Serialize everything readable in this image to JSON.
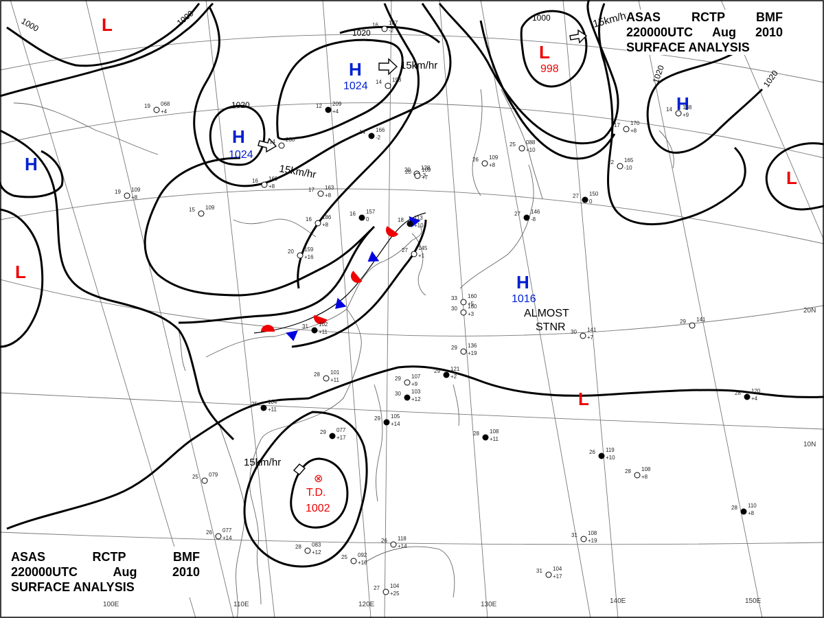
{
  "header": {
    "agency": "ASAS",
    "center": "RCTP",
    "product_code": "BMF",
    "time": "220000UTC",
    "month": "Aug",
    "year": "2010",
    "title": "SURFACE ANALYSIS"
  },
  "pressure_systems": [
    {
      "type": "L",
      "label": "L"
    },
    {
      "type": "L",
      "label": "L",
      "pressure": "998"
    },
    {
      "type": "L",
      "label": "L"
    },
    {
      "type": "L",
      "label": "L"
    },
    {
      "type": "L",
      "label": "L"
    },
    {
      "type": "H",
      "label": "H"
    },
    {
      "type": "H",
      "label": "H",
      "pressure": "1024"
    },
    {
      "type": "H",
      "label": "H",
      "pressure": "1024"
    },
    {
      "type": "H",
      "label": "H"
    },
    {
      "type": "H",
      "label": "H",
      "pressure": "1016"
    }
  ],
  "tropical_depression": {
    "symbol": "⊗",
    "label": "T.D.",
    "pressure": "1002"
  },
  "isobar_labels": [
    "1000",
    "1000",
    "1000",
    "1020",
    "1020",
    "1020",
    "1020"
  ],
  "motion_labels": [
    "15km/hr",
    "15km/hr",
    "15km/hr",
    "15km/hr"
  ],
  "annotations": {
    "almost": "ALMOST",
    "stnr": "STNR"
  },
  "lat_labels": [
    "20N",
    "10N"
  ],
  "lon_labels": [
    "100E",
    "110E",
    "120E",
    "130E",
    "140E",
    "150E"
  ],
  "stations": [
    {
      "t": "12",
      "p": "209",
      "d": "+4"
    },
    {
      "t": "14",
      "p": "166",
      "d": "-2"
    },
    {
      "t": "16",
      "p": "187",
      "d": "-2"
    },
    {
      "t": "20",
      "p": "128",
      "d": "-3"
    },
    {
      "t": "16",
      "p": "157",
      "d": "0"
    },
    {
      "t": "18",
      "p": "113",
      "d": "+10"
    },
    {
      "t": "16",
      "p": "186",
      "d": "+8"
    },
    {
      "t": "20",
      "p": "159",
      "d": "+16"
    },
    {
      "t": "27",
      "p": "145",
      "d": "+1"
    },
    {
      "t": "31",
      "p": "102",
      "d": "+11"
    },
    {
      "t": "29",
      "p": "136",
      "d": "+19"
    },
    {
      "t": "29",
      "p": "121",
      "d": "+2"
    },
    {
      "t": "28",
      "p": "101",
      "d": "+11"
    },
    {
      "t": "25",
      "p": "104",
      "d": "+11"
    },
    {
      "t": "29",
      "p": "107",
      "d": "+9"
    },
    {
      "t": "30",
      "p": "103",
      "d": "+12"
    },
    {
      "t": "29",
      "p": "105",
      "d": "+14"
    },
    {
      "t": "29",
      "p": "077",
      "d": "+17"
    },
    {
      "t": "28",
      "p": "108",
      "d": "+11"
    },
    {
      "t": "26",
      "p": "119",
      "d": "+10"
    },
    {
      "t": "28",
      "p": "108",
      "d": "+8"
    },
    {
      "t": "30",
      "p": "141",
      "d": "+7"
    },
    {
      "t": "29",
      "p": "141",
      "d": ""
    },
    {
      "t": "27",
      "p": "150",
      "d": "0"
    },
    {
      "t": "27",
      "p": "146",
      "d": "-8"
    },
    {
      "t": "22",
      "p": "165",
      "d": "-10"
    },
    {
      "t": "17",
      "p": "170",
      "d": "+8"
    },
    {
      "t": "14",
      "p": "138",
      "d": "+9"
    },
    {
      "t": "28",
      "p": "120",
      "d": "+4"
    },
    {
      "t": "28",
      "p": "110",
      "d": "+8"
    },
    {
      "t": "31",
      "p": "108",
      "d": "+19"
    },
    {
      "t": "31",
      "p": "104",
      "d": "+17"
    },
    {
      "t": "28",
      "p": "083",
      "d": "+12"
    },
    {
      "t": "26",
      "p": "077",
      "d": "+14"
    },
    {
      "t": "25",
      "p": "079",
      "d": ""
    },
    {
      "t": "27",
      "p": "104",
      "d": "+25"
    },
    {
      "t": "25",
      "p": "092",
      "d": "+10"
    },
    {
      "t": "26",
      "p": "118",
      "d": "+14"
    },
    {
      "t": "16",
      "p": "169",
      "d": "+8"
    },
    {
      "t": "17",
      "p": "163",
      "d": "+8"
    },
    {
      "t": "20",
      "p": "109",
      "d": "+7"
    },
    {
      "t": "19",
      "p": "109",
      "d": "+8"
    },
    {
      "t": "19",
      "p": "068",
      "d": "+4"
    },
    {
      "t": "15",
      "p": "109",
      "d": ""
    },
    {
      "t": "33",
      "p": "160",
      "d": "+5"
    },
    {
      "t": "30",
      "p": "160",
      "d": "+3"
    },
    {
      "t": "25",
      "p": "088",
      "d": "+10"
    },
    {
      "t": "26",
      "p": "109",
      "d": "+8"
    },
    {
      "t": "14",
      "p": "230",
      "d": ""
    },
    {
      "t": "14",
      "p": "198",
      "d": ""
    }
  ]
}
